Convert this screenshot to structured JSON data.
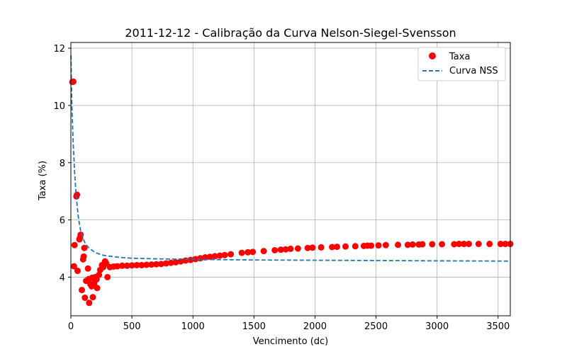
{
  "chart_data": {
    "type": "scatter",
    "title": "2011-12-12 - Calibração da Curva Nelson-Siegel-Svensson",
    "xlabel": "Vencimento (dc)",
    "ylabel": "Taxa (%)",
    "xlim": [
      0,
      3600
    ],
    "ylim": [
      2.65,
      12.2
    ],
    "xticks": [
      0,
      500,
      1000,
      1500,
      2000,
      2500,
      3000,
      3500
    ],
    "yticks": [
      4,
      6,
      8,
      10,
      12
    ],
    "grid": true,
    "legend_position": "top-right",
    "colors": {
      "scatter": "#ff0000",
      "curve": "#1f77b4"
    },
    "series": [
      {
        "name": "Taxa",
        "type": "scatter",
        "points": [
          [
            12,
            10.82
          ],
          [
            20,
            10.83
          ],
          [
            25,
            4.38
          ],
          [
            30,
            5.12
          ],
          [
            45,
            6.82
          ],
          [
            50,
            6.88
          ],
          [
            55,
            4.22
          ],
          [
            70,
            5.32
          ],
          [
            75,
            5.38
          ],
          [
            80,
            5.48
          ],
          [
            90,
            3.55
          ],
          [
            100,
            4.62
          ],
          [
            105,
            4.72
          ],
          [
            110,
            5.02
          ],
          [
            115,
            3.28
          ],
          [
            125,
            3.87
          ],
          [
            140,
            4.3
          ],
          [
            145,
            3.93
          ],
          [
            150,
            3.1
          ],
          [
            160,
            3.75
          ],
          [
            170,
            3.68
          ],
          [
            175,
            3.98
          ],
          [
            180,
            3.3
          ],
          [
            190,
            3.78
          ],
          [
            200,
            4.0
          ],
          [
            210,
            3.92
          ],
          [
            215,
            3.62
          ],
          [
            230,
            4.08
          ],
          [
            240,
            4.25
          ],
          [
            255,
            4.42
          ],
          [
            265,
            4.35
          ],
          [
            280,
            4.55
          ],
          [
            290,
            4.48
          ],
          [
            300,
            4.0
          ],
          [
            320,
            4.35
          ],
          [
            350,
            4.37
          ],
          [
            380,
            4.38
          ],
          [
            420,
            4.4
          ],
          [
            460,
            4.4
          ],
          [
            500,
            4.41
          ],
          [
            540,
            4.42
          ],
          [
            580,
            4.42
          ],
          [
            620,
            4.43
          ],
          [
            660,
            4.44
          ],
          [
            700,
            4.45
          ],
          [
            740,
            4.46
          ],
          [
            780,
            4.48
          ],
          [
            820,
            4.5
          ],
          [
            860,
            4.52
          ],
          [
            900,
            4.55
          ],
          [
            940,
            4.58
          ],
          [
            980,
            4.6
          ],
          [
            1020,
            4.63
          ],
          [
            1060,
            4.66
          ],
          [
            1100,
            4.69
          ],
          [
            1140,
            4.71
          ],
          [
            1180,
            4.73
          ],
          [
            1220,
            4.75
          ],
          [
            1260,
            4.77
          ],
          [
            1310,
            4.8
          ],
          [
            1400,
            4.85
          ],
          [
            1450,
            4.87
          ],
          [
            1490,
            4.88
          ],
          [
            1580,
            4.91
          ],
          [
            1670,
            4.94
          ],
          [
            1720,
            4.96
          ],
          [
            1760,
            4.97
          ],
          [
            1800,
            4.99
          ],
          [
            1860,
            5.0
          ],
          [
            1940,
            5.02
          ],
          [
            1980,
            5.03
          ],
          [
            2050,
            5.04
          ],
          [
            2140,
            5.05
          ],
          [
            2180,
            5.06
          ],
          [
            2250,
            5.07
          ],
          [
            2330,
            5.08
          ],
          [
            2400,
            5.09
          ],
          [
            2430,
            5.1
          ],
          [
            2460,
            5.1
          ],
          [
            2520,
            5.11
          ],
          [
            2580,
            5.12
          ],
          [
            2680,
            5.13
          ],
          [
            2760,
            5.13
          ],
          [
            2800,
            5.14
          ],
          [
            2850,
            5.14
          ],
          [
            2880,
            5.15
          ],
          [
            2960,
            5.15
          ],
          [
            3040,
            5.15
          ],
          [
            3140,
            5.15
          ],
          [
            3180,
            5.16
          ],
          [
            3220,
            5.16
          ],
          [
            3260,
            5.16
          ],
          [
            3340,
            5.16
          ],
          [
            3430,
            5.16
          ],
          [
            3520,
            5.16
          ],
          [
            3560,
            5.16
          ],
          [
            3600,
            5.16
          ]
        ]
      },
      {
        "name": "Curva NSS",
        "type": "line",
        "style": "dashed",
        "points": [
          [
            1,
            11.75
          ],
          [
            5,
            10.6
          ],
          [
            10,
            9.7
          ],
          [
            20,
            8.6
          ],
          [
            30,
            7.7
          ],
          [
            40,
            7.05
          ],
          [
            50,
            6.55
          ],
          [
            60,
            6.15
          ],
          [
            70,
            5.85
          ],
          [
            80,
            5.62
          ],
          [
            100,
            5.35
          ],
          [
            120,
            5.16
          ],
          [
            150,
            5.01
          ],
          [
            200,
            4.86
          ],
          [
            250,
            4.78
          ],
          [
            300,
            4.74
          ],
          [
            400,
            4.69
          ],
          [
            500,
            4.66
          ],
          [
            700,
            4.64
          ],
          [
            1000,
            4.62
          ],
          [
            1500,
            4.6
          ],
          [
            2000,
            4.59
          ],
          [
            2500,
            4.58
          ],
          [
            3000,
            4.57
          ],
          [
            3600,
            4.56
          ]
        ]
      }
    ]
  }
}
